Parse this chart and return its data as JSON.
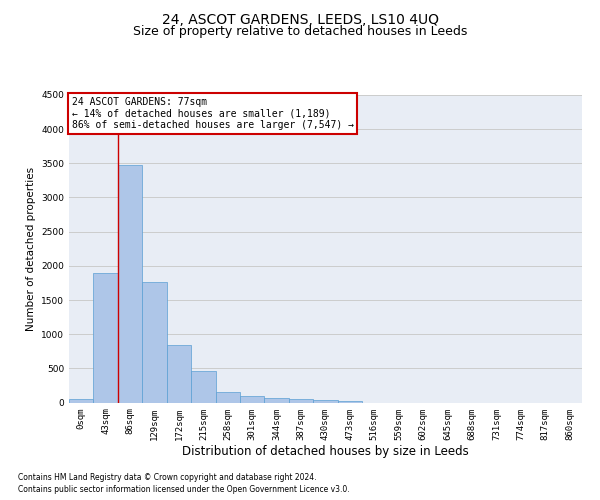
{
  "title": "24, ASCOT GARDENS, LEEDS, LS10 4UQ",
  "subtitle": "Size of property relative to detached houses in Leeds",
  "xlabel": "Distribution of detached houses by size in Leeds",
  "ylabel": "Number of detached properties",
  "footnote1": "Contains HM Land Registry data © Crown copyright and database right 2024.",
  "footnote2": "Contains public sector information licensed under the Open Government Licence v3.0.",
  "annotation_title": "24 ASCOT GARDENS: 77sqm",
  "annotation_line1": "← 14% of detached houses are smaller (1,189)",
  "annotation_line2": "86% of semi-detached houses are larger (7,547) →",
  "bar_color": "#aec6e8",
  "bar_edge_color": "#5a9fd4",
  "vline_color": "#cc0000",
  "vline_x": 1.5,
  "categories": [
    "0sqm",
    "43sqm",
    "86sqm",
    "129sqm",
    "172sqm",
    "215sqm",
    "258sqm",
    "301sqm",
    "344sqm",
    "387sqm",
    "430sqm",
    "473sqm",
    "516sqm",
    "559sqm",
    "602sqm",
    "645sqm",
    "688sqm",
    "731sqm",
    "774sqm",
    "817sqm",
    "860sqm"
  ],
  "values": [
    50,
    1900,
    3480,
    1760,
    840,
    455,
    160,
    95,
    65,
    55,
    30,
    25,
    0,
    0,
    0,
    0,
    0,
    0,
    0,
    0,
    0
  ],
  "ylim": [
    0,
    4500
  ],
  "yticks": [
    0,
    500,
    1000,
    1500,
    2000,
    2500,
    3000,
    3500,
    4000,
    4500
  ],
  "grid_color": "#cccccc",
  "background_color": "#e8edf5",
  "fig_background": "#ffffff",
  "title_fontsize": 10,
  "subtitle_fontsize": 9,
  "ylabel_fontsize": 7.5,
  "xlabel_fontsize": 8.5,
  "tick_fontsize": 6.5,
  "annotation_fontsize": 7,
  "footnote_fontsize": 5.5,
  "annotation_box_color": "#ffffff",
  "annotation_box_edge": "#cc0000"
}
